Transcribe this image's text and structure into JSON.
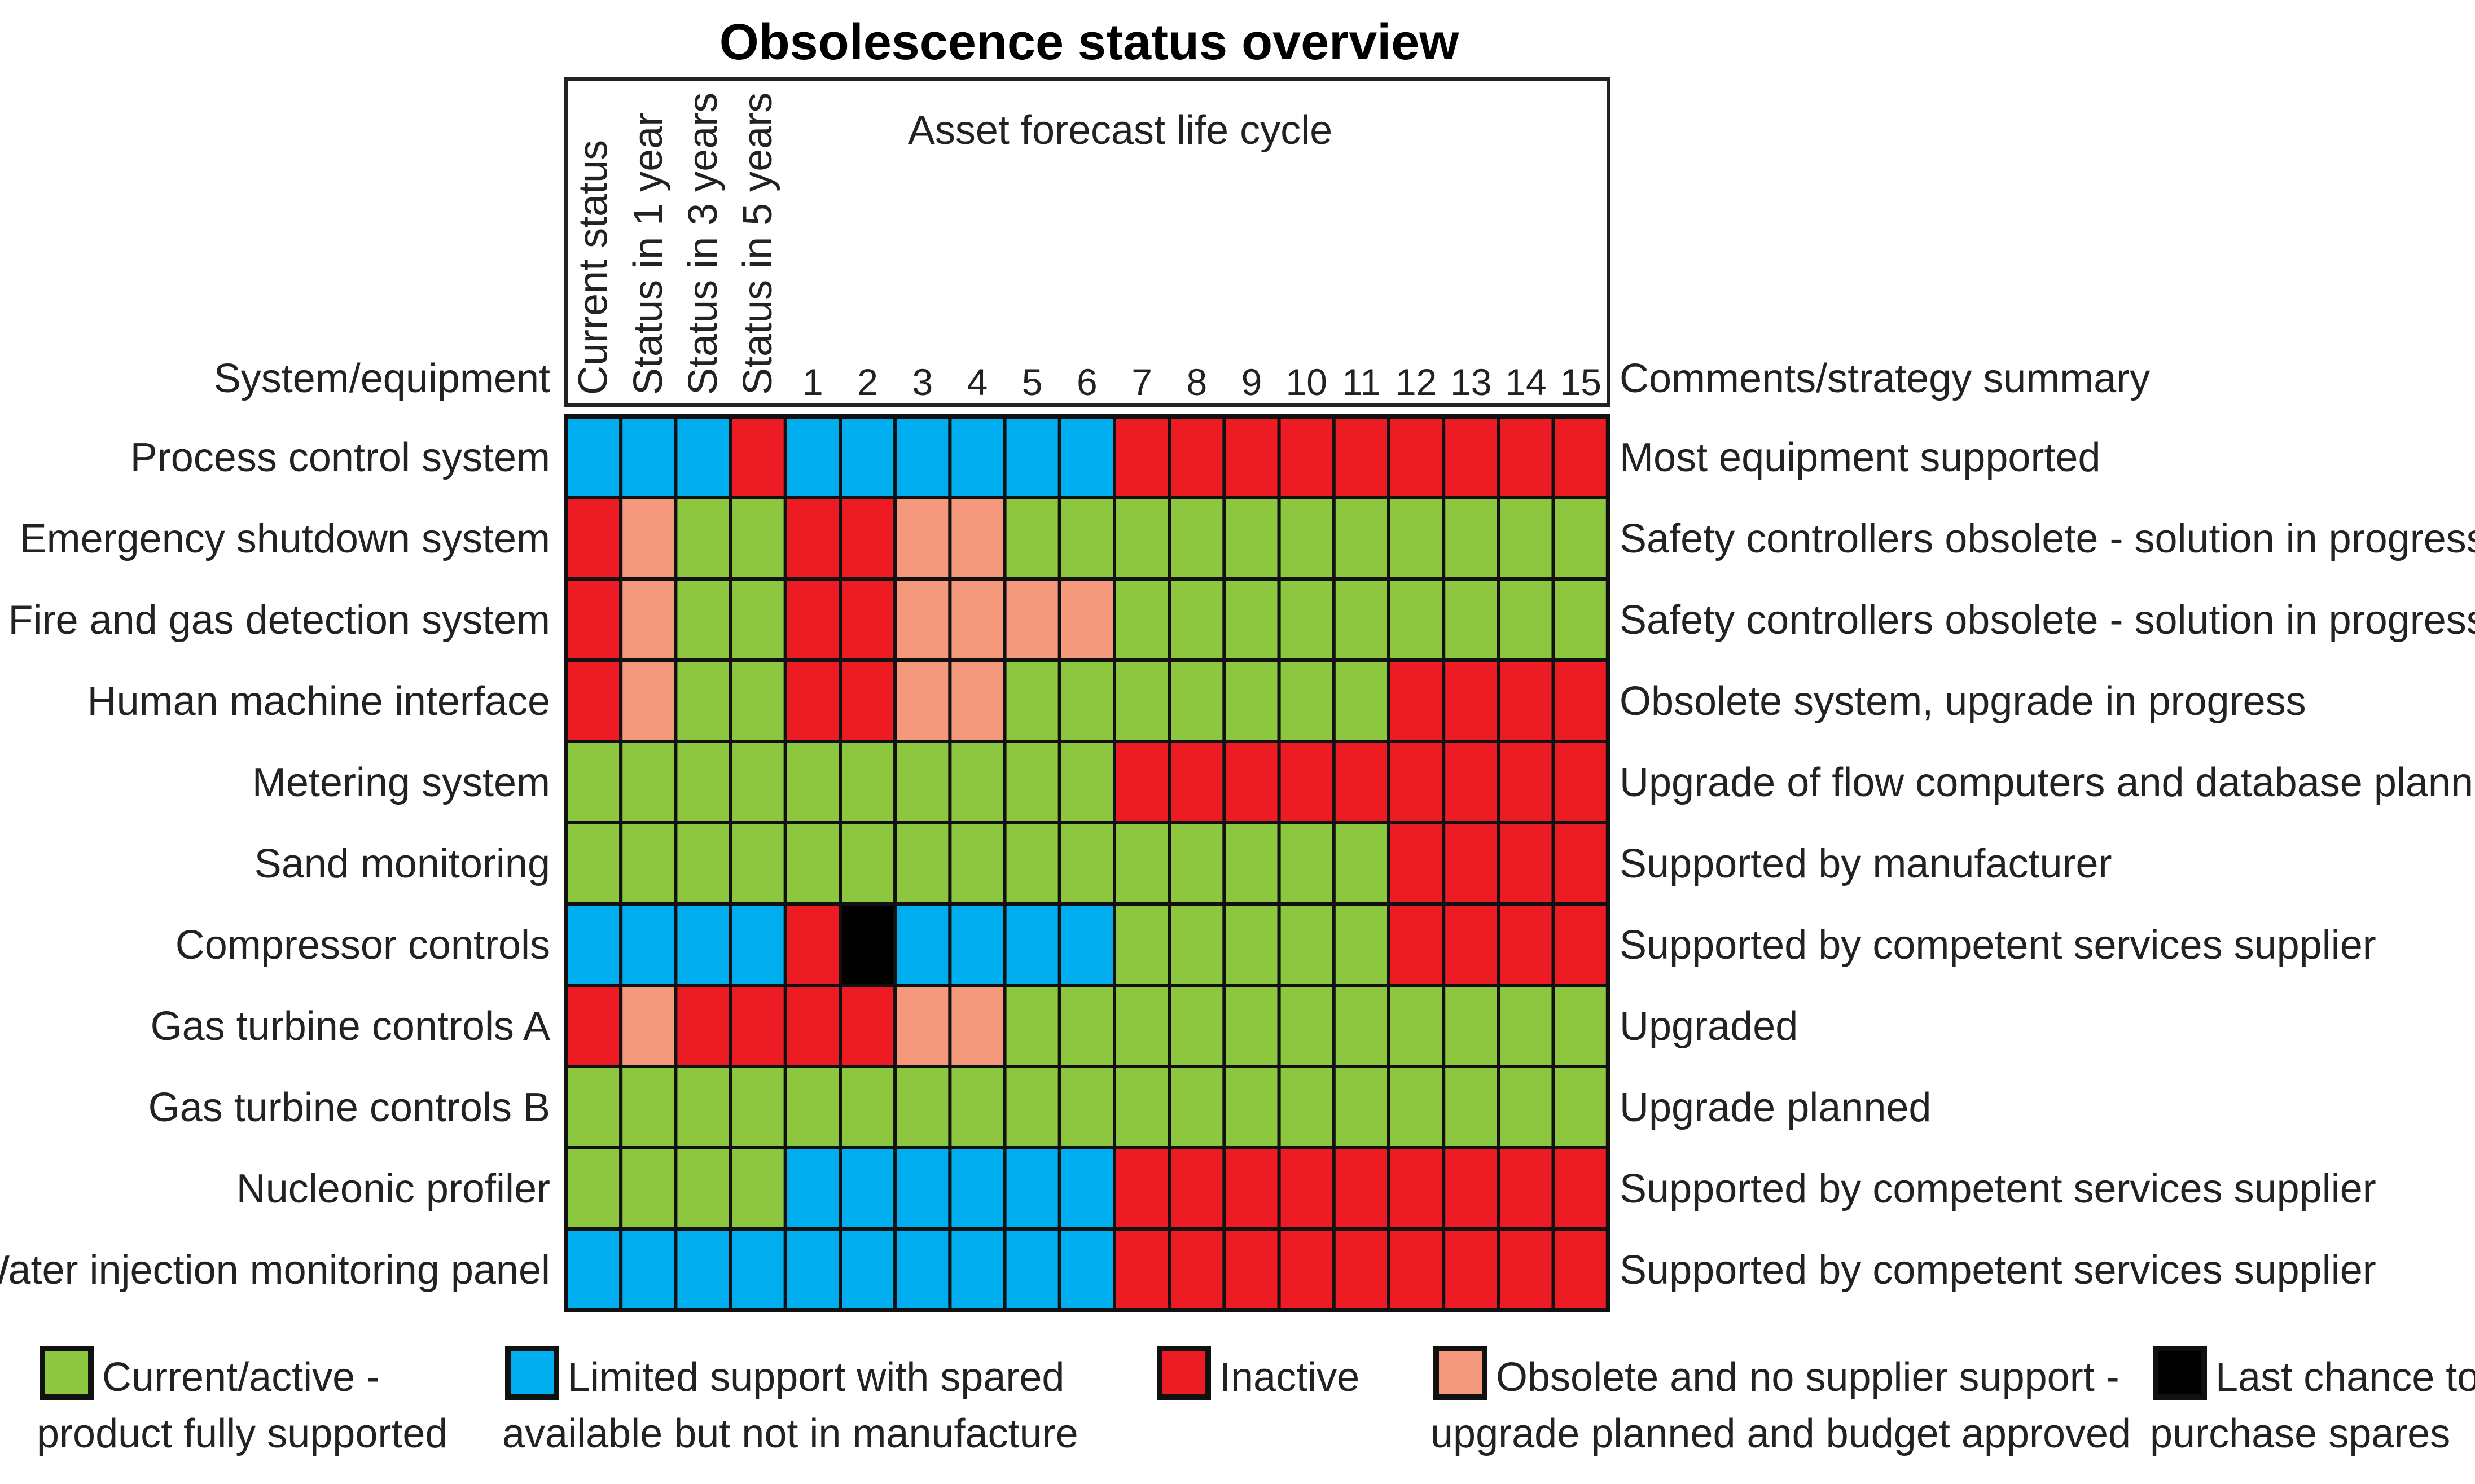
{
  "chart_data": {
    "type": "heatmap",
    "title": "Obsolescence status overview",
    "group_header": "Asset forecast life cycle",
    "row_header": "System/equipment",
    "comment_header": "Comments/strategy summary",
    "columns": [
      "Current status",
      "Status in 1 year",
      "Status in 3 years",
      "Status in 5 years",
      "1",
      "2",
      "3",
      "4",
      "5",
      "6",
      "7",
      "8",
      "9",
      "10",
      "11",
      "12",
      "13",
      "14",
      "15"
    ],
    "status_colors": {
      "G": "#8dc63f",
      "B": "#00aeef",
      "R": "#ed1c24",
      "S": "#f4997b",
      "K": "#000000"
    },
    "rows": [
      {
        "name": "Process control system",
        "comment": "Most equipment supported",
        "cells": [
          "B",
          "B",
          "B",
          "R",
          "B",
          "B",
          "B",
          "B",
          "B",
          "B",
          "R",
          "R",
          "R",
          "R",
          "R",
          "R",
          "R",
          "R",
          "R"
        ]
      },
      {
        "name": "Emergency shutdown system",
        "comment": "Safety controllers obsolete - solution in progress",
        "cells": [
          "R",
          "S",
          "G",
          "G",
          "R",
          "R",
          "S",
          "S",
          "G",
          "G",
          "G",
          "G",
          "G",
          "G",
          "G",
          "G",
          "G",
          "G",
          "G"
        ]
      },
      {
        "name": "Fire and gas detection system",
        "comment": "Safety controllers obsolete - solution in progress",
        "cells": [
          "R",
          "S",
          "G",
          "G",
          "R",
          "R",
          "S",
          "S",
          "S",
          "S",
          "G",
          "G",
          "G",
          "G",
          "G",
          "G",
          "G",
          "G",
          "G"
        ]
      },
      {
        "name": "Human machine interface",
        "comment": "Obsolete system, upgrade in progress",
        "cells": [
          "R",
          "S",
          "G",
          "G",
          "R",
          "R",
          "S",
          "S",
          "G",
          "G",
          "G",
          "G",
          "G",
          "G",
          "G",
          "R",
          "R",
          "R",
          "R"
        ]
      },
      {
        "name": "Metering system",
        "comment": "Upgrade of flow computers and database planned",
        "cells": [
          "G",
          "G",
          "G",
          "G",
          "G",
          "G",
          "G",
          "G",
          "G",
          "G",
          "R",
          "R",
          "R",
          "R",
          "R",
          "R",
          "R",
          "R",
          "R"
        ]
      },
      {
        "name": "Sand monitoring",
        "comment": "Supported by manufacturer",
        "cells": [
          "G",
          "G",
          "G",
          "G",
          "G",
          "G",
          "G",
          "G",
          "G",
          "G",
          "G",
          "G",
          "G",
          "G",
          "G",
          "R",
          "R",
          "R",
          "R"
        ]
      },
      {
        "name": "Compressor controls",
        "comment": "Supported by competent services supplier",
        "cells": [
          "B",
          "B",
          "B",
          "B",
          "R",
          "K",
          "B",
          "B",
          "B",
          "B",
          "G",
          "G",
          "G",
          "G",
          "G",
          "R",
          "R",
          "R",
          "R"
        ]
      },
      {
        "name": "Gas turbine controls A",
        "comment": "Upgraded",
        "cells": [
          "R",
          "S",
          "R",
          "R",
          "R",
          "R",
          "S",
          "S",
          "G",
          "G",
          "G",
          "G",
          "G",
          "G",
          "G",
          "G",
          "G",
          "G",
          "G"
        ]
      },
      {
        "name": "Gas turbine controls B",
        "comment": "Upgrade planned",
        "cells": [
          "G",
          "G",
          "G",
          "G",
          "G",
          "G",
          "G",
          "G",
          "G",
          "G",
          "G",
          "G",
          "G",
          "G",
          "G",
          "G",
          "G",
          "G",
          "G"
        ]
      },
      {
        "name": "Nucleonic profiler",
        "comment": "Supported by competent services supplier",
        "cells": [
          "G",
          "G",
          "G",
          "G",
          "B",
          "B",
          "B",
          "B",
          "B",
          "B",
          "R",
          "R",
          "R",
          "R",
          "R",
          "R",
          "R",
          "R",
          "R"
        ]
      },
      {
        "name": "Water injection monitoring panel",
        "comment": "Supported by competent services supplier",
        "cells": [
          "B",
          "B",
          "B",
          "B",
          "B",
          "B",
          "B",
          "B",
          "B",
          "B",
          "R",
          "R",
          "R",
          "R",
          "R",
          "R",
          "R",
          "R",
          "R"
        ]
      }
    ],
    "legend": [
      {
        "key": "G",
        "lines": [
          "Current/active -",
          "product fully supported"
        ]
      },
      {
        "key": "B",
        "lines": [
          "Limited support with spared",
          "available  but not in manufacture"
        ]
      },
      {
        "key": "R",
        "lines": [
          "Inactive"
        ]
      },
      {
        "key": "S",
        "lines": [
          "Obsolete and no supplier support -",
          "upgrade planned and budget approved"
        ]
      },
      {
        "key": "K",
        "lines": [
          "Last chance to",
          "purchase spares"
        ]
      }
    ]
  }
}
